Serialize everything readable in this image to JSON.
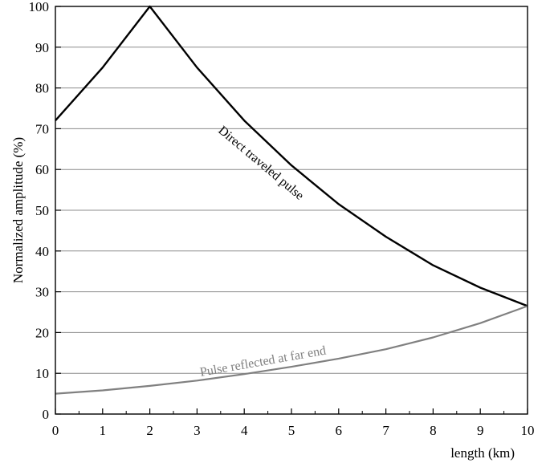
{
  "chart_data": {
    "type": "line",
    "title": "",
    "xlabel": "length (km)",
    "ylabel": "Normalized amplitude (%)",
    "xlim": [
      0,
      10
    ],
    "ylim": [
      0,
      100
    ],
    "x_ticks": [
      0,
      1,
      2,
      3,
      4,
      5,
      6,
      7,
      8,
      9,
      10
    ],
    "y_ticks": [
      0,
      10,
      20,
      30,
      40,
      50,
      60,
      70,
      80,
      90,
      100
    ],
    "grid": "horizontal",
    "series": [
      {
        "name": "Direct traveled pulse",
        "color": "#000000",
        "x": [
          0,
          1,
          2,
          3,
          4,
          5,
          6,
          7,
          8,
          9,
          10
        ],
        "y": [
          72,
          85,
          100,
          85,
          72,
          61,
          51.5,
          43.5,
          36.5,
          31,
          26.5
        ]
      },
      {
        "name": "Pulse reflected at far end",
        "color": "#808080",
        "x": [
          0,
          1,
          2,
          3,
          4,
          5,
          6,
          7,
          8,
          9,
          10
        ],
        "y": [
          5,
          5.8,
          6.9,
          8.2,
          9.8,
          11.6,
          13.6,
          15.9,
          18.8,
          22.3,
          26.5
        ]
      }
    ]
  }
}
